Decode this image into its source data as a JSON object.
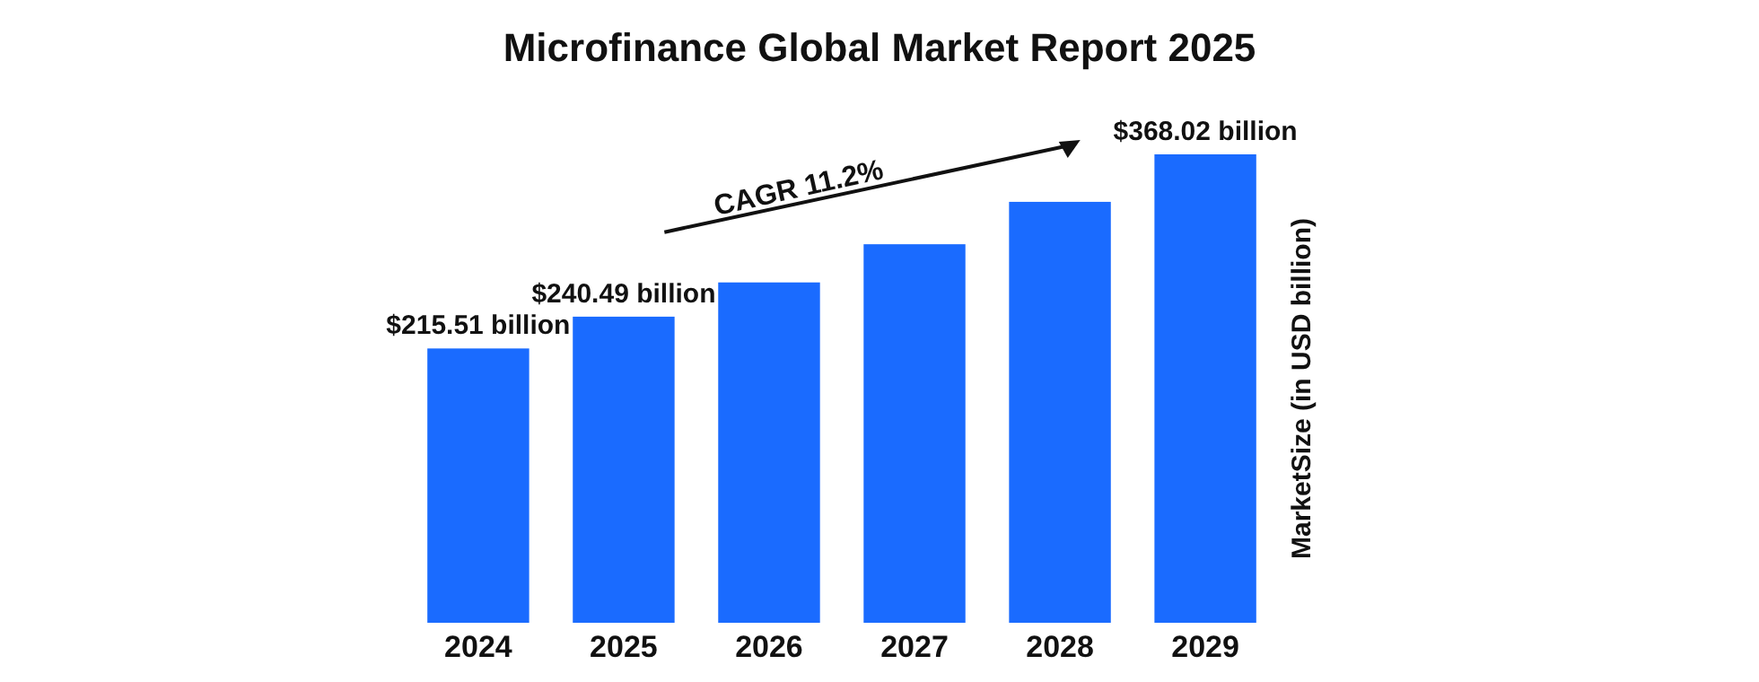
{
  "chart_data": {
    "type": "bar",
    "title": "Microfinance Global Market Report 2025",
    "ylabel": "MarketSize (in USD billion)",
    "categories": [
      "2024",
      "2025",
      "2026",
      "2027",
      "2028",
      "2029"
    ],
    "values": [
      215.51,
      240.49,
      267.4,
      297.4,
      330.7,
      368.02
    ],
    "value_labels": [
      "$215.51 billion",
      "$240.49 billion",
      null,
      null,
      null,
      "$368.02 billion"
    ],
    "color": "#1a6bff",
    "annotations": [
      "CAGR 11.2%"
    ]
  }
}
